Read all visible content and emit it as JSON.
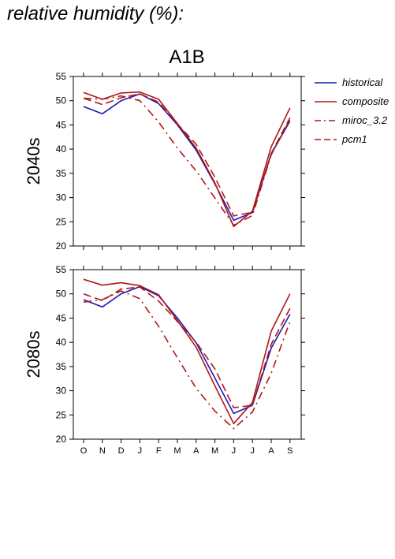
{
  "figure_title": "relative humidity (%):",
  "chart_data": {
    "type": "line",
    "title": "A1B",
    "categories": [
      "O",
      "N",
      "D",
      "J",
      "F",
      "M",
      "A",
      "M",
      "J",
      "J",
      "A",
      "S"
    ],
    "ylim": [
      20,
      55
    ],
    "yticks": [
      20,
      25,
      30,
      35,
      40,
      45,
      50,
      55
    ],
    "grid": false,
    "legend_position": "right",
    "legend": [
      {
        "name": "historical",
        "color": "#1a1ab8",
        "dash": "solid"
      },
      {
        "name": "composite",
        "color": "#b01818",
        "dash": "solid"
      },
      {
        "name": "miroc_3.2",
        "color": "#b01818",
        "dash": "dashdot"
      },
      {
        "name": "pcm1",
        "color": "#b01818",
        "dash": "dash"
      }
    ],
    "panels": [
      {
        "label": "2040s",
        "series": [
          {
            "name": "historical",
            "values": [
              48.8,
              47.3,
              50.0,
              51.4,
              49.4,
              45.0,
              39.8,
              32.8,
              25.3,
              26.9,
              39.0,
              45.8
            ]
          },
          {
            "name": "composite",
            "values": [
              51.7,
              50.3,
              51.6,
              51.8,
              50.3,
              45.3,
              40.2,
              33.0,
              24.0,
              27.2,
              40.5,
              48.5
            ]
          },
          {
            "name": "miroc_3.2",
            "values": [
              50.5,
              50.3,
              51.0,
              50.0,
              45.6,
              40.2,
              35.5,
              29.9,
              24.3,
              26.3,
              38.8,
              46.2
            ]
          },
          {
            "name": "pcm1",
            "values": [
              50.5,
              49.2,
              50.6,
              51.4,
              49.7,
              45.2,
              41.0,
              34.2,
              26.2,
              27.0,
              39.1,
              46.5
            ]
          }
        ]
      },
      {
        "label": "2080s",
        "series": [
          {
            "name": "historical",
            "values": [
              48.8,
              47.3,
              50.0,
              51.5,
              49.6,
              45.0,
              39.9,
              32.6,
              25.3,
              27.0,
              38.8,
              45.8
            ]
          },
          {
            "name": "composite",
            "values": [
              53.0,
              51.8,
              52.3,
              51.7,
              49.8,
              44.5,
              39.0,
              31.0,
              23.2,
              27.6,
              42.3,
              50.0
            ]
          },
          {
            "name": "miroc_3.2",
            "values": [
              48.3,
              48.8,
              50.6,
              49.0,
              43.3,
              36.8,
              30.5,
              25.8,
              22.2,
              25.6,
              33.6,
              44.3
            ]
          },
          {
            "name": "pcm1",
            "values": [
              50.0,
              48.6,
              51.0,
              51.4,
              48.5,
              44.3,
              40.0,
              34.5,
              26.5,
              27.0,
              39.6,
              47.0
            ]
          }
        ]
      }
    ]
  }
}
